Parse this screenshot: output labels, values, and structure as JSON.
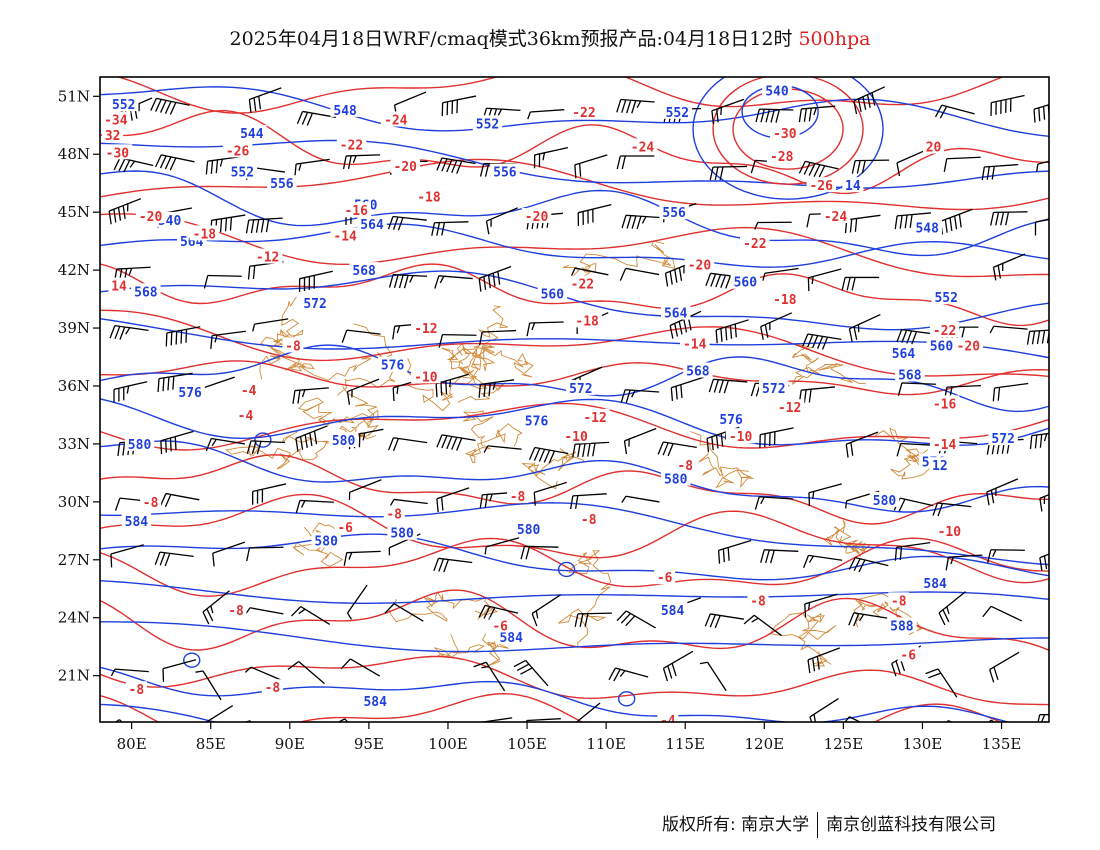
{
  "title": {
    "main": "2025年04月18日WRF/cmaq模式36km预报产品:04月18日12时",
    "level": "500hpa"
  },
  "axes": {
    "lon_ticks": [
      "80E",
      "85E",
      "90E",
      "95E",
      "100E",
      "105E",
      "110E",
      "115E",
      "120E",
      "125E",
      "130E",
      "135E"
    ],
    "lon_values": [
      80,
      85,
      90,
      95,
      100,
      105,
      110,
      115,
      120,
      125,
      130,
      135
    ],
    "lat_ticks": [
      "51N",
      "48N",
      "45N",
      "42N",
      "39N",
      "36N",
      "33N",
      "30N",
      "27N",
      "24N",
      "21N"
    ],
    "lat_values": [
      51,
      48,
      45,
      42,
      39,
      36,
      33,
      30,
      27,
      24,
      21
    ],
    "lon_range": [
      78,
      138
    ],
    "lat_range": [
      18.6,
      52
    ]
  },
  "colors": {
    "height_contour": "#1f3fdd",
    "temperature_contour": "#e03030",
    "boundaries": "#d08a3a",
    "wind_barb": "#000000"
  },
  "chart_data": {
    "type": "map",
    "height_labels": [
      {
        "text": "552",
        "lon": 79.5,
        "lat": 50.6
      },
      {
        "text": "548",
        "lon": 93.5,
        "lat": 50.3
      },
      {
        "text": "552",
        "lon": 102.5,
        "lat": 49.6
      },
      {
        "text": "552",
        "lon": 114.5,
        "lat": 50.2
      },
      {
        "text": "540",
        "lon": 120.8,
        "lat": 51.3
      },
      {
        "text": "544",
        "lon": 87.6,
        "lat": 49.1
      },
      {
        "text": "552",
        "lon": 87.0,
        "lat": 47.1
      },
      {
        "text": "556",
        "lon": 89.5,
        "lat": 46.5
      },
      {
        "text": "556",
        "lon": 103.6,
        "lat": 47.1
      },
      {
        "text": "560",
        "lon": 94.8,
        "lat": 45.4
      },
      {
        "text": "564",
        "lon": 95.2,
        "lat": 44.4
      },
      {
        "text": "540",
        "lon": 82.4,
        "lat": 44.6
      },
      {
        "text": "564",
        "lon": 83.8,
        "lat": 43.5
      },
      {
        "text": "556",
        "lon": 114.3,
        "lat": 45.0
      },
      {
        "text": "548",
        "lon": 130.3,
        "lat": 44.2
      },
      {
        "text": "568",
        "lon": 94.7,
        "lat": 42.0
      },
      {
        "text": "568",
        "lon": 80.9,
        "lat": 40.9
      },
      {
        "text": "572",
        "lon": 91.6,
        "lat": 40.3
      },
      {
        "text": "560",
        "lon": 106.6,
        "lat": 40.8
      },
      {
        "text": "560",
        "lon": 118.8,
        "lat": 41.4
      },
      {
        "text": "552",
        "lon": 131.5,
        "lat": 40.6
      },
      {
        "text": "564",
        "lon": 114.4,
        "lat": 39.8
      },
      {
        "text": "560",
        "lon": 131.2,
        "lat": 38.1
      },
      {
        "text": "564",
        "lon": 128.8,
        "lat": 37.7
      },
      {
        "text": "576",
        "lon": 96.5,
        "lat": 37.1
      },
      {
        "text": "568",
        "lon": 115.8,
        "lat": 36.8
      },
      {
        "text": "568",
        "lon": 129.2,
        "lat": 36.6
      },
      {
        "text": "576",
        "lon": 83.7,
        "lat": 35.7
      },
      {
        "text": "572",
        "lon": 108.4,
        "lat": 35.9
      },
      {
        "text": "572",
        "lon": 120.6,
        "lat": 35.9
      },
      {
        "text": "576",
        "lon": 105.6,
        "lat": 34.2
      },
      {
        "text": "576",
        "lon": 117.9,
        "lat": 34.3
      },
      {
        "text": "580",
        "lon": 80.5,
        "lat": 33.0
      },
      {
        "text": "580",
        "lon": 93.4,
        "lat": 33.2
      },
      {
        "text": "572",
        "lon": 135.1,
        "lat": 33.3
      },
      {
        "text": "576",
        "lon": 130.7,
        "lat": 32.1
      },
      {
        "text": "580",
        "lon": 114.4,
        "lat": 31.2
      },
      {
        "text": "580",
        "lon": 127.6,
        "lat": 30.1
      },
      {
        "text": "584",
        "lon": 80.3,
        "lat": 29.0
      },
      {
        "text": "580",
        "lon": 92.3,
        "lat": 28.0
      },
      {
        "text": "580",
        "lon": 97.1,
        "lat": 28.4
      },
      {
        "text": "580",
        "lon": 105.1,
        "lat": 28.6
      },
      {
        "text": "584",
        "lon": 130.8,
        "lat": 25.8
      },
      {
        "text": "584",
        "lon": 114.2,
        "lat": 24.4
      },
      {
        "text": "588",
        "lon": 128.7,
        "lat": 23.6
      },
      {
        "text": "584",
        "lon": 104.0,
        "lat": 23.0
      },
      {
        "text": "584",
        "lon": 95.4,
        "lat": 19.7
      },
      {
        "text": "14",
        "lon": 125.6,
        "lat": 46.4
      },
      {
        "text": "12",
        "lon": 131.1,
        "lat": 31.9
      }
    ],
    "temperature_labels": [
      {
        "text": "-34",
        "lon": 79.0,
        "lat": 49.8
      },
      {
        "text": "32",
        "lon": 78.8,
        "lat": 49.0
      },
      {
        "text": "-30",
        "lon": 79.1,
        "lat": 48.1
      },
      {
        "text": "-24",
        "lon": 96.7,
        "lat": 49.8
      },
      {
        "text": "-22",
        "lon": 108.6,
        "lat": 50.2
      },
      {
        "text": "-26",
        "lon": 86.7,
        "lat": 48.2
      },
      {
        "text": "-22",
        "lon": 93.9,
        "lat": 48.5
      },
      {
        "text": "-20",
        "lon": 97.3,
        "lat": 47.4
      },
      {
        "text": "-24",
        "lon": 112.3,
        "lat": 48.4
      },
      {
        "text": "-30",
        "lon": 121.3,
        "lat": 49.1
      },
      {
        "text": "-28",
        "lon": 121.1,
        "lat": 47.9
      },
      {
        "text": "-26",
        "lon": 123.6,
        "lat": 46.4
      },
      {
        "text": "20",
        "lon": 130.7,
        "lat": 48.4
      },
      {
        "text": "-18",
        "lon": 98.8,
        "lat": 45.8
      },
      {
        "text": "-16",
        "lon": 94.2,
        "lat": 45.1
      },
      {
        "text": "-20",
        "lon": 81.2,
        "lat": 44.8
      },
      {
        "text": "-20",
        "lon": 105.6,
        "lat": 44.8
      },
      {
        "text": "-18",
        "lon": 84.6,
        "lat": 43.9
      },
      {
        "text": "-14",
        "lon": 93.5,
        "lat": 43.8
      },
      {
        "text": "-24",
        "lon": 124.5,
        "lat": 44.8
      },
      {
        "text": "-22",
        "lon": 119.4,
        "lat": 43.4
      },
      {
        "text": "-12",
        "lon": 88.6,
        "lat": 42.7
      },
      {
        "text": "-20",
        "lon": 115.9,
        "lat": 42.3
      },
      {
        "text": "14",
        "lon": 79.2,
        "lat": 41.2
      },
      {
        "text": "-22",
        "lon": 108.5,
        "lat": 41.3
      },
      {
        "text": "-18",
        "lon": 121.3,
        "lat": 40.5
      },
      {
        "text": "-18",
        "lon": 108.8,
        "lat": 39.4
      },
      {
        "text": "-12",
        "lon": 98.6,
        "lat": 39.0
      },
      {
        "text": "-22",
        "lon": 131.4,
        "lat": 38.9
      },
      {
        "text": "-14",
        "lon": 115.6,
        "lat": 38.2
      },
      {
        "text": "-8",
        "lon": 90.2,
        "lat": 38.1
      },
      {
        "text": "-20",
        "lon": 132.9,
        "lat": 38.1
      },
      {
        "text": "-10",
        "lon": 98.6,
        "lat": 36.5
      },
      {
        "text": "-4",
        "lon": 87.4,
        "lat": 35.8
      },
      {
        "text": "-16",
        "lon": 131.4,
        "lat": 35.1
      },
      {
        "text": "-4",
        "lon": 87.2,
        "lat": 34.5
      },
      {
        "text": "-12",
        "lon": 109.3,
        "lat": 34.4
      },
      {
        "text": "-12",
        "lon": 121.6,
        "lat": 34.9
      },
      {
        "text": "-10",
        "lon": 108.1,
        "lat": 33.4
      },
      {
        "text": "-10",
        "lon": 118.5,
        "lat": 33.4
      },
      {
        "text": "-14",
        "lon": 131.4,
        "lat": 33.0
      },
      {
        "text": "-8",
        "lon": 115.0,
        "lat": 31.9
      },
      {
        "text": "-8",
        "lon": 81.2,
        "lat": 30.0
      },
      {
        "text": "-8",
        "lon": 104.4,
        "lat": 30.3
      },
      {
        "text": "-8",
        "lon": 96.6,
        "lat": 29.4
      },
      {
        "text": "-6",
        "lon": 93.5,
        "lat": 28.7
      },
      {
        "text": "-8",
        "lon": 108.9,
        "lat": 29.1
      },
      {
        "text": "-10",
        "lon": 131.7,
        "lat": 28.5
      },
      {
        "text": "-6",
        "lon": 113.7,
        "lat": 26.1
      },
      {
        "text": "-8",
        "lon": 86.6,
        "lat": 24.4
      },
      {
        "text": "-8",
        "lon": 119.6,
        "lat": 24.9
      },
      {
        "text": "-8",
        "lon": 128.5,
        "lat": 24.9
      },
      {
        "text": "-6",
        "lon": 103.3,
        "lat": 23.6
      },
      {
        "text": "-6",
        "lon": 129.1,
        "lat": 22.1
      },
      {
        "text": "-8",
        "lon": 80.3,
        "lat": 20.3
      },
      {
        "text": "-8",
        "lon": 88.9,
        "lat": 20.4
      },
      {
        "text": "-4",
        "lon": 113.9,
        "lat": 18.7
      }
    ]
  },
  "footer": {
    "left": "版权所有: 南京大学",
    "right": "南京创蓝科技有限公司"
  }
}
